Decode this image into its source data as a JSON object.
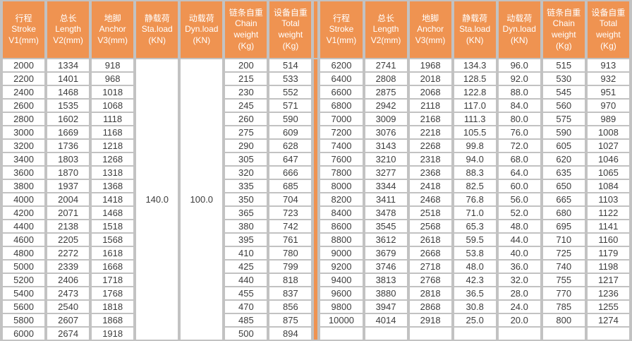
{
  "colors": {
    "accent_orange": "#EF9351",
    "grid_gray": "#C2C2C2",
    "cell_white": "#FFFFFF",
    "body_text": "#3C3C3C",
    "header_text": "#FFFFFF"
  },
  "table": {
    "headers": [
      "行程\nStroke\nV1(mm)",
      "总长\nLength\nV2(mm)",
      "地脚\nAnchor\nV3(mm)",
      "静载荷\nSta.load\n(KN)",
      "动载荷\nDyn.load\n(KN)",
      "链条自重\nChain\nweight\n(Kg)",
      "设备自重\nTotal\nweight\n(Kg)"
    ],
    "left_merged": {
      "static_load": "140.0",
      "dynamic_load": "100.0"
    },
    "rows": [
      {
        "left": [
          "2000",
          "1334",
          "918",
          "200",
          "514"
        ],
        "right": [
          "6200",
          "2741",
          "1968",
          "134.3",
          "96.0",
          "515",
          "913"
        ]
      },
      {
        "left": [
          "2200",
          "1401",
          "968",
          "215",
          "533"
        ],
        "right": [
          "6400",
          "2808",
          "2018",
          "128.5",
          "92.0",
          "530",
          "932"
        ]
      },
      {
        "left": [
          "2400",
          "1468",
          "1018",
          "230",
          "552"
        ],
        "right": [
          "6600",
          "2875",
          "2068",
          "122.8",
          "88.0",
          "545",
          "951"
        ]
      },
      {
        "left": [
          "2600",
          "1535",
          "1068",
          "245",
          "571"
        ],
        "right": [
          "6800",
          "2942",
          "2118",
          "117.0",
          "84.0",
          "560",
          "970"
        ]
      },
      {
        "left": [
          "2800",
          "1602",
          "1118",
          "260",
          "590"
        ],
        "right": [
          "7000",
          "3009",
          "2168",
          "111.3",
          "80.0",
          "575",
          "989"
        ]
      },
      {
        "left": [
          "3000",
          "1669",
          "1168",
          "275",
          "609"
        ],
        "right": [
          "7200",
          "3076",
          "2218",
          "105.5",
          "76.0",
          "590",
          "1008"
        ]
      },
      {
        "left": [
          "3200",
          "1736",
          "1218",
          "290",
          "628"
        ],
        "right": [
          "7400",
          "3143",
          "2268",
          "99.8",
          "72.0",
          "605",
          "1027"
        ]
      },
      {
        "left": [
          "3400",
          "1803",
          "1268",
          "305",
          "647"
        ],
        "right": [
          "7600",
          "3210",
          "2318",
          "94.0",
          "68.0",
          "620",
          "1046"
        ]
      },
      {
        "left": [
          "3600",
          "1870",
          "1318",
          "320",
          "666"
        ],
        "right": [
          "7800",
          "3277",
          "2368",
          "88.3",
          "64.0",
          "635",
          "1065"
        ]
      },
      {
        "left": [
          "3800",
          "1937",
          "1368",
          "335",
          "685"
        ],
        "right": [
          "8000",
          "3344",
          "2418",
          "82.5",
          "60.0",
          "650",
          "1084"
        ]
      },
      {
        "left": [
          "4000",
          "2004",
          "1418",
          "350",
          "704"
        ],
        "right": [
          "8200",
          "3411",
          "2468",
          "76.8",
          "56.0",
          "665",
          "1103"
        ]
      },
      {
        "left": [
          "4200",
          "2071",
          "1468",
          "365",
          "723"
        ],
        "right": [
          "8400",
          "3478",
          "2518",
          "71.0",
          "52.0",
          "680",
          "1122"
        ]
      },
      {
        "left": [
          "4400",
          "2138",
          "1518",
          "380",
          "742"
        ],
        "right": [
          "8600",
          "3545",
          "2568",
          "65.3",
          "48.0",
          "695",
          "1141"
        ]
      },
      {
        "left": [
          "4600",
          "2205",
          "1568",
          "395",
          "761"
        ],
        "right": [
          "8800",
          "3612",
          "2618",
          "59.5",
          "44.0",
          "710",
          "1160"
        ]
      },
      {
        "left": [
          "4800",
          "2272",
          "1618",
          "410",
          "780"
        ],
        "right": [
          "9000",
          "3679",
          "2668",
          "53.8",
          "40.0",
          "725",
          "1179"
        ]
      },
      {
        "left": [
          "5000",
          "2339",
          "1668",
          "425",
          "799"
        ],
        "right": [
          "9200",
          "3746",
          "2718",
          "48.0",
          "36.0",
          "740",
          "1198"
        ]
      },
      {
        "left": [
          "5200",
          "2406",
          "1718",
          "440",
          "818"
        ],
        "right": [
          "9400",
          "3813",
          "2768",
          "42.3",
          "32.0",
          "755",
          "1217"
        ]
      },
      {
        "left": [
          "5400",
          "2473",
          "1768",
          "455",
          "837"
        ],
        "right": [
          "9600",
          "3880",
          "2818",
          "36.5",
          "28.0",
          "770",
          "1236"
        ]
      },
      {
        "left": [
          "5600",
          "2540",
          "1818",
          "470",
          "856"
        ],
        "right": [
          "9800",
          "3947",
          "2868",
          "30.8",
          "24.0",
          "785",
          "1255"
        ]
      },
      {
        "left": [
          "5800",
          "2607",
          "1868",
          "485",
          "875"
        ],
        "right": [
          "10000",
          "4014",
          "2918",
          "25.0",
          "20.0",
          "800",
          "1274"
        ]
      },
      {
        "left": [
          "6000",
          "2674",
          "1918",
          "500",
          "894"
        ],
        "right": [
          "",
          "",
          "",
          "",
          "",
          "",
          ""
        ]
      }
    ]
  }
}
